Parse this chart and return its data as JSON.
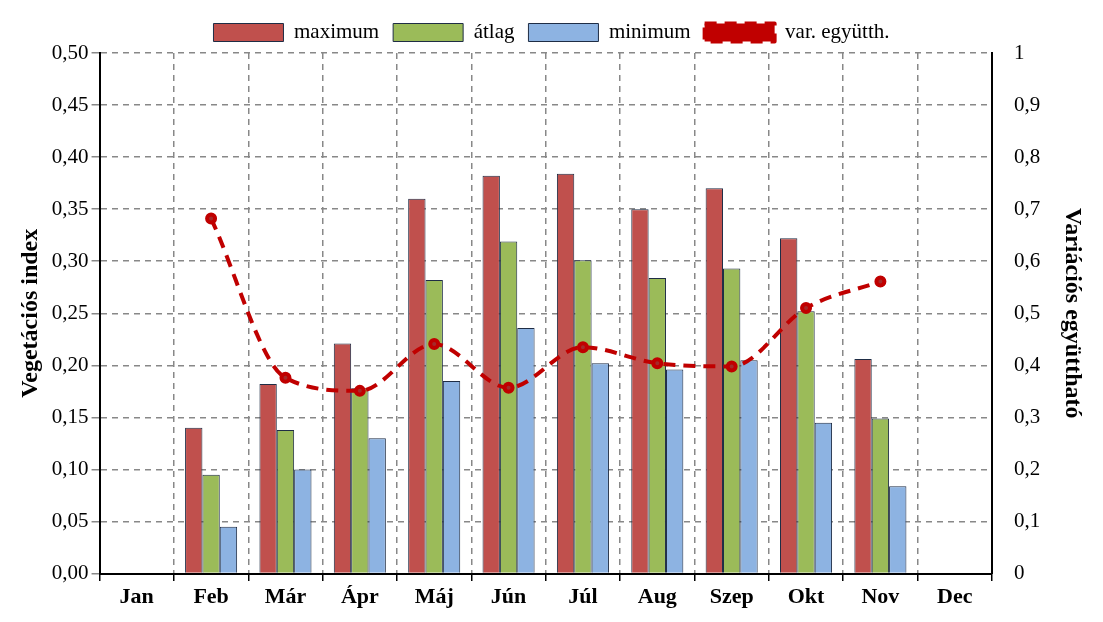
{
  "chart_data": {
    "type": "bar",
    "ylabel": "Vegetációs index",
    "y2label": "Variációs együttható",
    "categories": [
      "Jan",
      "Feb",
      "Már",
      "Ápr",
      "Máj",
      "Jún",
      "Júl",
      "Aug",
      "Szep",
      "Okt",
      "Nov",
      "Dec"
    ],
    "series": [
      {
        "name": "maximum",
        "color": "#c0504d",
        "values": [
          null,
          0.14,
          0.182,
          0.221,
          0.36,
          0.382,
          0.384,
          0.35,
          0.37,
          0.322,
          0.206,
          null
        ]
      },
      {
        "name": "átlag",
        "color": "#9bbb59",
        "values": [
          null,
          0.095,
          0.138,
          0.178,
          0.282,
          0.319,
          0.301,
          0.284,
          0.293,
          0.252,
          0.149,
          null
        ]
      },
      {
        "name": "minimum",
        "color": "#8db3e2",
        "values": [
          null,
          0.045,
          0.1,
          0.13,
          0.185,
          0.236,
          0.202,
          0.196,
          0.205,
          0.145,
          0.084,
          null
        ]
      },
      {
        "name": "var. együtth.",
        "type": "line",
        "axis": "y2",
        "color": "#c00000",
        "line_style": "dashed",
        "marker": "circle",
        "values": [
          null,
          0.682,
          0.376,
          0.351,
          0.441,
          0.357,
          0.435,
          0.404,
          0.398,
          0.51,
          0.561,
          null
        ]
      }
    ],
    "ylim": [
      0,
      0.5
    ],
    "yticks": [
      {
        "value": 0,
        "label": "0,00"
      },
      {
        "value": 0.05,
        "label": "0,05"
      },
      {
        "value": 0.1,
        "label": "0,10"
      },
      {
        "value": 0.15,
        "label": "0,15"
      },
      {
        "value": 0.2,
        "label": "0,20"
      },
      {
        "value": 0.25,
        "label": "0,25"
      },
      {
        "value": 0.3,
        "label": "0,30"
      },
      {
        "value": 0.35,
        "label": "0,35"
      },
      {
        "value": 0.4,
        "label": "0,40"
      },
      {
        "value": 0.45,
        "label": "0,45"
      },
      {
        "value": 0.5,
        "label": "0,50"
      }
    ],
    "y2lim": [
      0,
      1
    ],
    "y2ticks": [
      0,
      {
        "value": 0.1,
        "label": "0,1"
      },
      {
        "value": 0.2,
        "label": "0,2"
      },
      {
        "value": 0.3,
        "label": "0,3"
      },
      {
        "value": 0.4,
        "label": "0,4"
      },
      {
        "value": 0.5,
        "label": "0,5"
      },
      {
        "value": 0.6,
        "label": "0,6"
      },
      {
        "value": 0.7,
        "label": "0,7"
      },
      {
        "value": 0.8,
        "label": "0,8"
      },
      {
        "value": 0.9,
        "label": "0,9"
      },
      1
    ],
    "grid": true,
    "legend": "top"
  }
}
